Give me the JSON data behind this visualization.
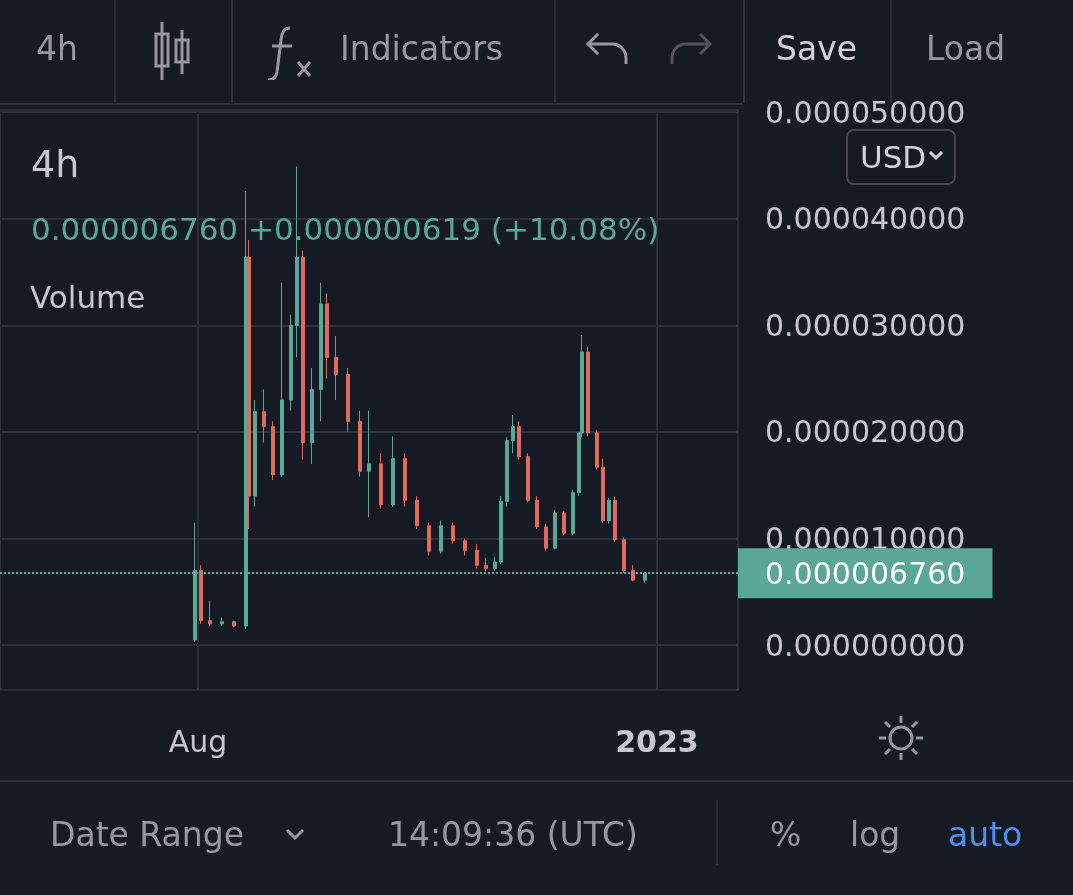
{
  "chart_data": {
    "type": "candlestick",
    "title": "4h",
    "subtitle": "0.000006760 +0.000000619 (+10.08%)",
    "annotations": [
      "4h",
      "Indicators",
      "Save",
      "Load",
      "USD",
      "Volume",
      "Date Range",
      "14:09:36 (UTC)",
      "%",
      "log",
      "auto"
    ],
    "x": [
      "2022-07-31",
      "2022-08-02",
      "2022-08-05",
      "2022-08-09",
      "2022-08-13",
      "2022-08-17",
      "2022-08-18",
      "2022-08-20",
      "2022-08-23",
      "2022-08-26",
      "2022-08-29",
      "2022-09-01",
      "2022-09-03",
      "2022-09-05",
      "2022-09-08",
      "2022-09-11",
      "2022-09-13",
      "2022-09-16",
      "2022-09-20",
      "2022-09-24",
      "2022-09-27",
      "2022-10-01",
      "2022-10-05",
      "2022-10-09",
      "2022-10-13",
      "2022-10-17",
      "2022-10-21",
      "2022-10-25",
      "2022-10-29",
      "2022-11-02",
      "2022-11-05",
      "2022-11-08",
      "2022-11-10",
      "2022-11-12",
      "2022-11-14",
      "2022-11-16",
      "2022-11-19",
      "2022-11-22",
      "2022-11-25",
      "2022-11-28",
      "2022-12-01",
      "2022-12-04",
      "2022-12-06",
      "2022-12-07",
      "2022-12-09",
      "2022-12-12",
      "2022-12-14",
      "2022-12-16",
      "2022-12-18",
      "2022-12-21",
      "2022-12-24",
      "2022-12-28"
    ],
    "ohlc": [
      [
        5e-07,
        1.15e-05,
        3e-07,
        7e-06
      ],
      [
        7e-06,
        7.5e-06,
        2e-06,
        2.3e-06
      ],
      [
        2.3e-06,
        4.2e-06,
        1.8e-06,
        2e-06
      ],
      [
        2e-06,
        2.6e-06,
        1.8e-06,
        2.2e-06
      ],
      [
        2.2e-06,
        2.3e-06,
        1.7e-06,
        1.8e-06
      ],
      [
        1.8e-06,
        4.26e-05,
        1.5e-06,
        3.64e-05
      ],
      [
        3.64e-05,
        3.8e-05,
        1.09e-05,
        1.4e-05
      ],
      [
        1.4e-05,
        2.3e-05,
        1.3e-05,
        2.19e-05
      ],
      [
        2.19e-05,
        2.4e-05,
        1.9e-05,
        2.05e-05
      ],
      [
        2.05e-05,
        2.1e-05,
        1.55e-05,
        1.6e-05
      ],
      [
        1.6e-05,
        3.4e-05,
        1.58e-05,
        2.3e-05
      ],
      [
        2.3e-05,
        3.1e-05,
        2.2e-05,
        3e-05
      ],
      [
        3e-05,
        4.49e-05,
        2.7e-05,
        3.64e-05
      ],
      [
        3.64e-05,
        3.7e-05,
        1.74e-05,
        1.9e-05
      ],
      [
        1.9e-05,
        2.6e-05,
        1.7e-05,
        2.4e-05
      ],
      [
        2.4e-05,
        3.4e-05,
        2.1e-05,
        3.2e-05
      ],
      [
        3.2e-05,
        3.3e-05,
        2.5e-05,
        2.7e-05
      ],
      [
        2.7e-05,
        2.9e-05,
        2.3e-05,
        2.54e-05
      ],
      [
        2.54e-05,
        2.6e-05,
        2e-05,
        2.1e-05
      ],
      [
        2.1e-05,
        2.2e-05,
        1.58e-05,
        1.63e-05
      ],
      [
        1.63e-05,
        2.2e-05,
        1.2e-05,
        1.7e-05
      ],
      [
        1.7e-05,
        1.8e-05,
        1.28e-05,
        1.32e-05
      ],
      [
        1.32e-05,
        1.96e-05,
        1.3e-05,
        1.75e-05
      ],
      [
        1.75e-05,
        1.8e-05,
        1.3e-05,
        1.36e-05
      ],
      [
        1.36e-05,
        1.4e-05,
        1.09e-05,
        1.12e-05
      ],
      [
        1.12e-05,
        1.15e-05,
        8.4e-06,
        8.8e-06
      ],
      [
        8.8e-06,
        1.17e-05,
        8.6e-06,
        1.12e-05
      ],
      [
        1.12e-05,
        1.15e-05,
        9.5e-06,
        9.8e-06
      ],
      [
        9.8e-06,
        1e-05,
        8.4e-06,
        8.9e-06
      ],
      [
        8.9e-06,
        9.5e-06,
        7.2e-06,
        7.5e-06
      ],
      [
        7.5e-06,
        8.2e-06,
        6.9e-06,
        7.2e-06
      ],
      [
        7.2e-06,
        8.3e-06,
        7e-06,
        7.8e-06
      ],
      [
        7.8e-06,
        1.4e-05,
        7.6e-06,
        1.35e-05
      ],
      [
        1.35e-05,
        1.95e-05,
        1.3e-05,
        1.92e-05
      ],
      [
        1.92e-05,
        2.16e-05,
        1.8e-05,
        2.05e-05
      ],
      [
        2.05e-05,
        2.1e-05,
        1.74e-05,
        1.77e-05
      ],
      [
        1.77e-05,
        1.8e-05,
        1.34e-05,
        1.36e-05
      ],
      [
        1.36e-05,
        1.4e-05,
        1.09e-05,
        1.11e-05
      ],
      [
        1.11e-05,
        1.14e-05,
        8.9e-06,
        9.1e-06
      ],
      [
        9.1e-06,
        1.27e-05,
        9e-06,
        1.24e-05
      ],
      [
        1.24e-05,
        1.26e-05,
        1.03e-05,
        1.05e-05
      ],
      [
        1.05e-05,
        1.46e-05,
        1.03e-05,
        1.43e-05
      ],
      [
        1.43e-05,
        2e-05,
        1.4e-05,
        1.99e-05
      ],
      [
        1.99e-05,
        2.91e-05,
        1.95e-05,
        2.75e-05
      ],
      [
        2.75e-05,
        2.8e-05,
        1.96e-05,
        1.99e-05
      ],
      [
        1.99e-05,
        2.02e-05,
        1.65e-05,
        1.67e-05
      ],
      [
        1.67e-05,
        1.75e-05,
        1.15e-05,
        1.17e-05
      ],
      [
        1.17e-05,
        1.38e-05,
        1.14e-05,
        1.36e-05
      ],
      [
        1.36e-05,
        1.39e-05,
        9.7e-06,
        9.9e-06
      ],
      [
        9.9e-06,
        1.01e-05,
        6.8e-06,
        7e-06
      ],
      [
        7e-06,
        7.5e-06,
        6e-06,
        6.1e-06
      ],
      [
        6.1e-06,
        6.9e-06,
        5.9e-06,
        6.76e-06
      ]
    ],
    "colors": [
      "#5aa797",
      "#e06a5c",
      "#e06a5c",
      "#5aa797",
      "#e06a5c",
      "#5aa797",
      "#e06a5c",
      "#5aa797",
      "#e06a5c",
      "#e06a5c",
      "#5aa797",
      "#5aa797",
      "#5aa797",
      "#e06a5c",
      "#5aa797",
      "#5aa797",
      "#e06a5c",
      "#e06a5c",
      "#e06a5c",
      "#e06a5c",
      "#5aa797",
      "#e06a5c",
      "#5aa797",
      "#e06a5c",
      "#e06a5c",
      "#e06a5c",
      "#5aa797",
      "#e06a5c",
      "#e06a5c",
      "#e06a5c",
      "#e06a5c",
      "#5aa797",
      "#5aa797",
      "#5aa797",
      "#5aa797",
      "#e06a5c",
      "#e06a5c",
      "#e06a5c",
      "#e06a5c",
      "#5aa797",
      "#e06a5c",
      "#5aa797",
      "#5aa797",
      "#5aa797",
      "#e06a5c",
      "#e06a5c",
      "#e06a5c",
      "#5aa797",
      "#e06a5c",
      "#e06a5c",
      "#e06a5c",
      "#5aa797"
    ],
    "xlim": [
      "2022-05-27",
      "2023-01-28"
    ],
    "xticks": [
      {
        "value": "2022-08-01",
        "label": "Aug"
      },
      {
        "value": "2023-01-01",
        "label": "2023"
      }
    ],
    "ylim": [
      -4.2e-06,
      5.02e-05
    ],
    "yticks": [
      {
        "value": 0,
        "label": "0.000000000"
      },
      {
        "value": 1e-05,
        "label": "0.000010000"
      },
      {
        "value": 2e-05,
        "label": "0.000020000"
      },
      {
        "value": 3e-05,
        "label": "0.000030000"
      },
      {
        "value": 4e-05,
        "label": "0.000040000"
      },
      {
        "value": 5e-05,
        "label": "0.000050000"
      }
    ],
    "ref_lines": [
      {
        "axis": "y",
        "value": 6.76e-06,
        "label": "0.000006760",
        "color": "#5aa797",
        "line_style": "dotted"
      }
    ],
    "grid": true
  }
}
